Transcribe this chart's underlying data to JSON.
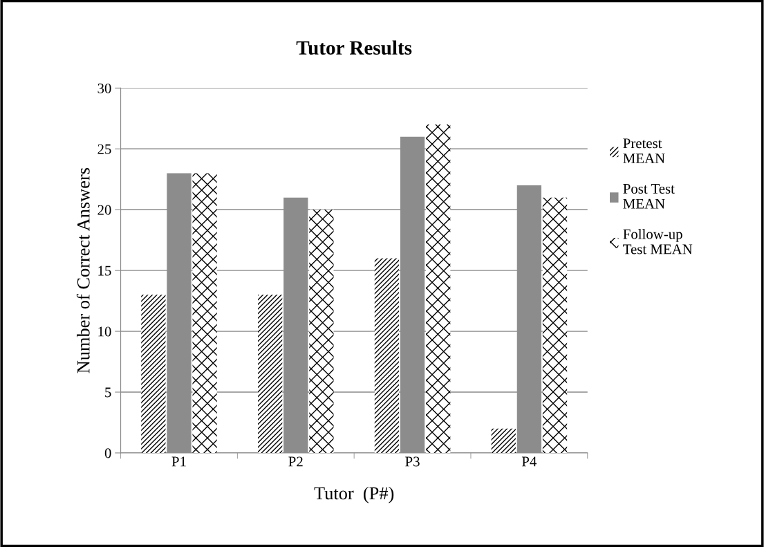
{
  "chart_data": {
    "type": "bar",
    "title": "Tutor Results",
    "xlabel": "Tutor  (P#)",
    "ylabel": "Number of Correct Answers",
    "categories": [
      "P1",
      "P2",
      "P3",
      "P4"
    ],
    "series": [
      {
        "name": "Pretest\nMEAN",
        "color": "#000000",
        "values": [
          13,
          13,
          16,
          2
        ]
      },
      {
        "name": "Post Test\nMEAN",
        "color": "#8c8c8c",
        "values": [
          23,
          21,
          26,
          22
        ]
      },
      {
        "name": "Follow-up\nTest MEAN",
        "color": "#000000",
        "values": [
          23,
          20,
          27,
          21
        ]
      }
    ],
    "ylim": [
      0,
      30
    ],
    "yticks": [
      0,
      5,
      10,
      15,
      20,
      25,
      30
    ],
    "grid": "y",
    "legend": "right"
  }
}
